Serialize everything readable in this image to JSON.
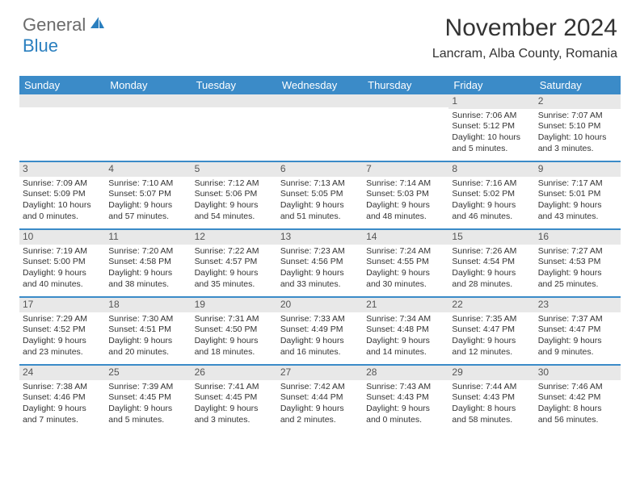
{
  "logo": {
    "general": "General",
    "blue": "Blue"
  },
  "title": "November 2024",
  "location": "Lancram, Alba County, Romania",
  "header_bg": "#3b8bc8",
  "band_bg": "#e8e8e8",
  "week_border": "#3b8bc8",
  "day_headers": [
    "Sunday",
    "Monday",
    "Tuesday",
    "Wednesday",
    "Thursday",
    "Friday",
    "Saturday"
  ],
  "weeks": [
    [
      null,
      null,
      null,
      null,
      null,
      {
        "n": "1",
        "sr": "Sunrise: 7:06 AM",
        "ss": "Sunset: 5:12 PM",
        "dl": "Daylight: 10 hours and 5 minutes."
      },
      {
        "n": "2",
        "sr": "Sunrise: 7:07 AM",
        "ss": "Sunset: 5:10 PM",
        "dl": "Daylight: 10 hours and 3 minutes."
      }
    ],
    [
      {
        "n": "3",
        "sr": "Sunrise: 7:09 AM",
        "ss": "Sunset: 5:09 PM",
        "dl": "Daylight: 10 hours and 0 minutes."
      },
      {
        "n": "4",
        "sr": "Sunrise: 7:10 AM",
        "ss": "Sunset: 5:07 PM",
        "dl": "Daylight: 9 hours and 57 minutes."
      },
      {
        "n": "5",
        "sr": "Sunrise: 7:12 AM",
        "ss": "Sunset: 5:06 PM",
        "dl": "Daylight: 9 hours and 54 minutes."
      },
      {
        "n": "6",
        "sr": "Sunrise: 7:13 AM",
        "ss": "Sunset: 5:05 PM",
        "dl": "Daylight: 9 hours and 51 minutes."
      },
      {
        "n": "7",
        "sr": "Sunrise: 7:14 AM",
        "ss": "Sunset: 5:03 PM",
        "dl": "Daylight: 9 hours and 48 minutes."
      },
      {
        "n": "8",
        "sr": "Sunrise: 7:16 AM",
        "ss": "Sunset: 5:02 PM",
        "dl": "Daylight: 9 hours and 46 minutes."
      },
      {
        "n": "9",
        "sr": "Sunrise: 7:17 AM",
        "ss": "Sunset: 5:01 PM",
        "dl": "Daylight: 9 hours and 43 minutes."
      }
    ],
    [
      {
        "n": "10",
        "sr": "Sunrise: 7:19 AM",
        "ss": "Sunset: 5:00 PM",
        "dl": "Daylight: 9 hours and 40 minutes."
      },
      {
        "n": "11",
        "sr": "Sunrise: 7:20 AM",
        "ss": "Sunset: 4:58 PM",
        "dl": "Daylight: 9 hours and 38 minutes."
      },
      {
        "n": "12",
        "sr": "Sunrise: 7:22 AM",
        "ss": "Sunset: 4:57 PM",
        "dl": "Daylight: 9 hours and 35 minutes."
      },
      {
        "n": "13",
        "sr": "Sunrise: 7:23 AM",
        "ss": "Sunset: 4:56 PM",
        "dl": "Daylight: 9 hours and 33 minutes."
      },
      {
        "n": "14",
        "sr": "Sunrise: 7:24 AM",
        "ss": "Sunset: 4:55 PM",
        "dl": "Daylight: 9 hours and 30 minutes."
      },
      {
        "n": "15",
        "sr": "Sunrise: 7:26 AM",
        "ss": "Sunset: 4:54 PM",
        "dl": "Daylight: 9 hours and 28 minutes."
      },
      {
        "n": "16",
        "sr": "Sunrise: 7:27 AM",
        "ss": "Sunset: 4:53 PM",
        "dl": "Daylight: 9 hours and 25 minutes."
      }
    ],
    [
      {
        "n": "17",
        "sr": "Sunrise: 7:29 AM",
        "ss": "Sunset: 4:52 PM",
        "dl": "Daylight: 9 hours and 23 minutes."
      },
      {
        "n": "18",
        "sr": "Sunrise: 7:30 AM",
        "ss": "Sunset: 4:51 PM",
        "dl": "Daylight: 9 hours and 20 minutes."
      },
      {
        "n": "19",
        "sr": "Sunrise: 7:31 AM",
        "ss": "Sunset: 4:50 PM",
        "dl": "Daylight: 9 hours and 18 minutes."
      },
      {
        "n": "20",
        "sr": "Sunrise: 7:33 AM",
        "ss": "Sunset: 4:49 PM",
        "dl": "Daylight: 9 hours and 16 minutes."
      },
      {
        "n": "21",
        "sr": "Sunrise: 7:34 AM",
        "ss": "Sunset: 4:48 PM",
        "dl": "Daylight: 9 hours and 14 minutes."
      },
      {
        "n": "22",
        "sr": "Sunrise: 7:35 AM",
        "ss": "Sunset: 4:47 PM",
        "dl": "Daylight: 9 hours and 12 minutes."
      },
      {
        "n": "23",
        "sr": "Sunrise: 7:37 AM",
        "ss": "Sunset: 4:47 PM",
        "dl": "Daylight: 9 hours and 9 minutes."
      }
    ],
    [
      {
        "n": "24",
        "sr": "Sunrise: 7:38 AM",
        "ss": "Sunset: 4:46 PM",
        "dl": "Daylight: 9 hours and 7 minutes."
      },
      {
        "n": "25",
        "sr": "Sunrise: 7:39 AM",
        "ss": "Sunset: 4:45 PM",
        "dl": "Daylight: 9 hours and 5 minutes."
      },
      {
        "n": "26",
        "sr": "Sunrise: 7:41 AM",
        "ss": "Sunset: 4:45 PM",
        "dl": "Daylight: 9 hours and 3 minutes."
      },
      {
        "n": "27",
        "sr": "Sunrise: 7:42 AM",
        "ss": "Sunset: 4:44 PM",
        "dl": "Daylight: 9 hours and 2 minutes."
      },
      {
        "n": "28",
        "sr": "Sunrise: 7:43 AM",
        "ss": "Sunset: 4:43 PM",
        "dl": "Daylight: 9 hours and 0 minutes."
      },
      {
        "n": "29",
        "sr": "Sunrise: 7:44 AM",
        "ss": "Sunset: 4:43 PM",
        "dl": "Daylight: 8 hours and 58 minutes."
      },
      {
        "n": "30",
        "sr": "Sunrise: 7:46 AM",
        "ss": "Sunset: 4:42 PM",
        "dl": "Daylight: 8 hours and 56 minutes."
      }
    ]
  ]
}
